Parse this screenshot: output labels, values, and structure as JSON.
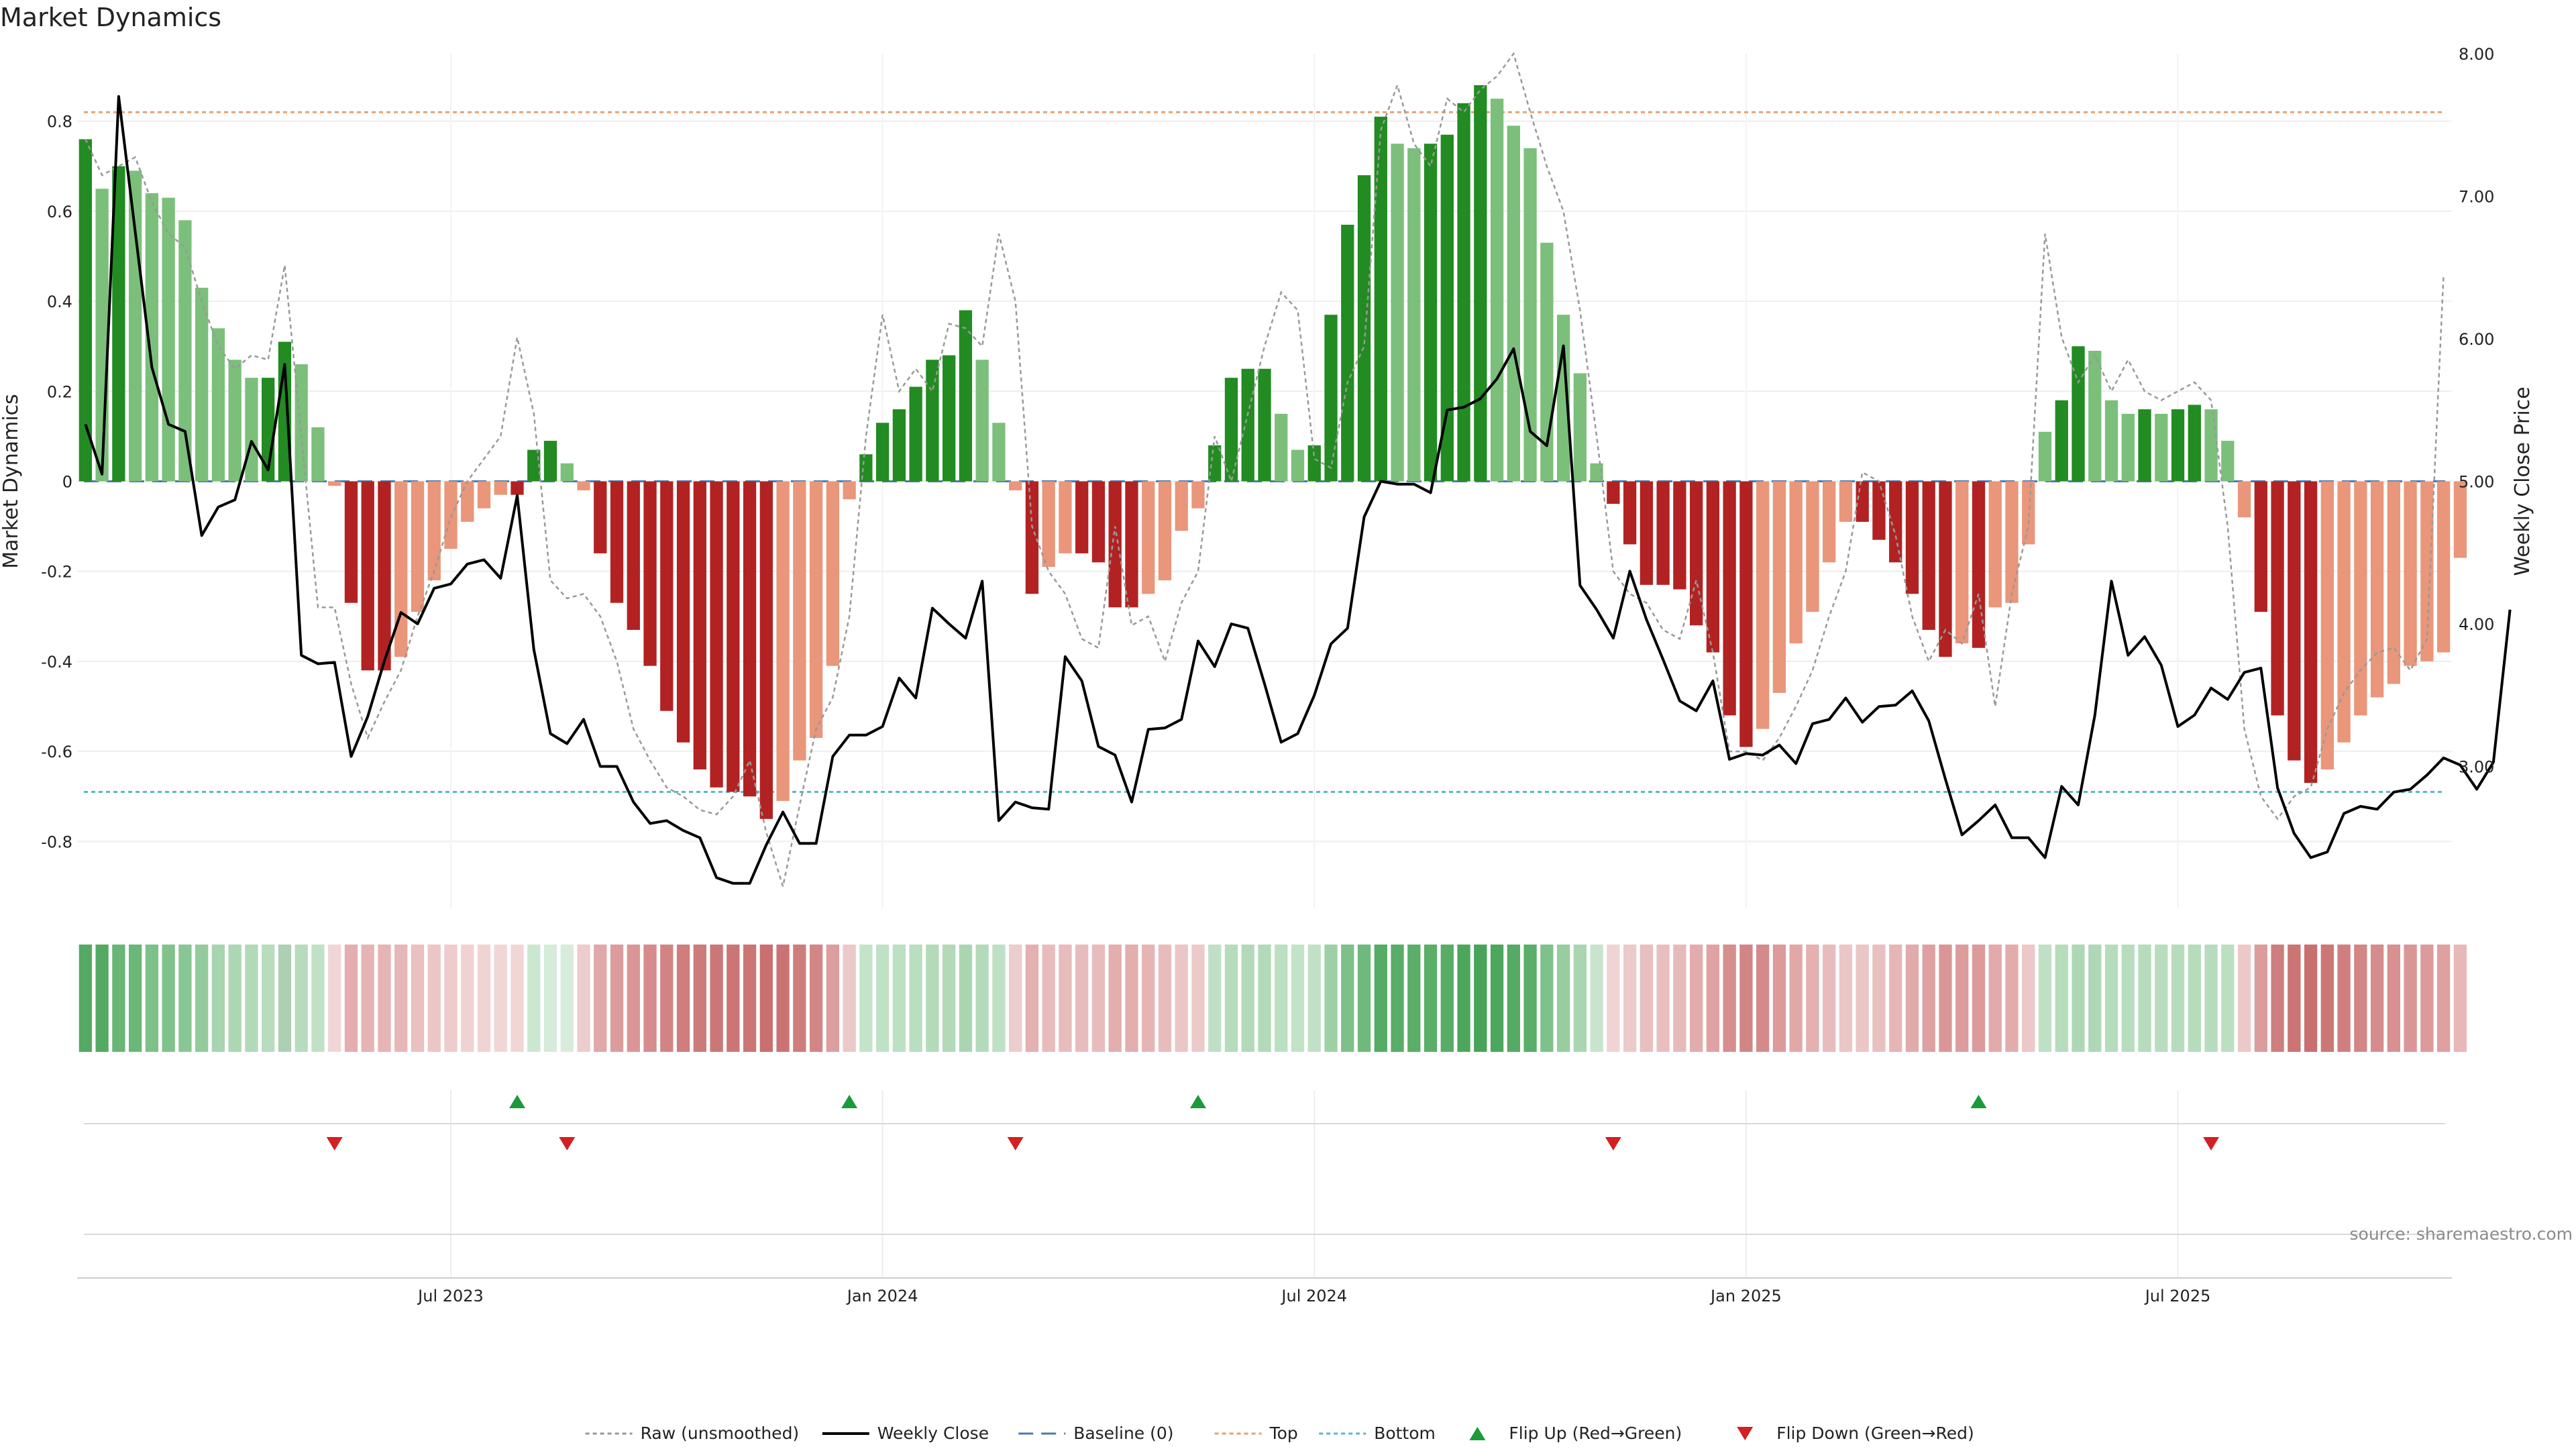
{
  "chart_data": {
    "type": "bar",
    "title": "Market Dynamics",
    "ylabel_left": "Market Dynamics",
    "ylabel_right": "Weekly Close Price",
    "ylim_left": [
      -0.95,
      0.95
    ],
    "ylim_right": [
      2.0,
      8.0
    ],
    "left_ticks": [
      {
        "v": 0.8,
        "label": "0.8"
      },
      {
        "v": 0.6,
        "label": "0.6"
      },
      {
        "v": 0.4,
        "label": "0.4"
      },
      {
        "v": 0.2,
        "label": "0.2"
      },
      {
        "v": 0,
        "label": "0"
      },
      {
        "v": -0.2,
        "label": "-0.2"
      },
      {
        "v": -0.4,
        "label": "-0.4"
      },
      {
        "v": -0.6,
        "label": "-0.6"
      },
      {
        "v": -0.8,
        "label": "-0.8"
      }
    ],
    "right_ticks": [
      {
        "v": 8,
        "label": "8.00"
      },
      {
        "v": 7,
        "label": "7.00"
      },
      {
        "v": 6,
        "label": "6.00"
      },
      {
        "v": 5,
        "label": "5.00"
      },
      {
        "v": 4,
        "label": "4.00"
      },
      {
        "v": 3,
        "label": "3.00"
      }
    ],
    "x_ticks": [
      {
        "week": 22,
        "label": "Jul 2023"
      },
      {
        "week": 48,
        "label": "Jan 2024"
      },
      {
        "week": 74,
        "label": "Jul 2024"
      },
      {
        "week": 100,
        "label": "Jan 2025"
      },
      {
        "week": 126,
        "label": "Jul 2025"
      }
    ],
    "num_weeks": 143,
    "top_level": 0.82,
    "bottom_level": -0.69,
    "baseline": 0,
    "bars": [
      0.76,
      0.65,
      0.7,
      0.69,
      0.64,
      0.63,
      0.58,
      0.43,
      0.34,
      0.27,
      0.23,
      0.23,
      0.31,
      0.26,
      0.12,
      -0.01,
      -0.27,
      -0.42,
      -0.42,
      -0.39,
      -0.29,
      -0.22,
      -0.15,
      -0.09,
      -0.06,
      -0.03,
      -0.03,
      0.07,
      0.09,
      0.04,
      -0.02,
      -0.16,
      -0.27,
      -0.33,
      -0.41,
      -0.51,
      -0.58,
      -0.64,
      -0.68,
      -0.69,
      -0.7,
      -0.75,
      -0.71,
      -0.62,
      -0.57,
      -0.41,
      -0.04,
      0.06,
      0.13,
      0.16,
      0.21,
      0.27,
      0.28,
      0.38,
      0.27,
      0.13,
      -0.02,
      -0.25,
      -0.19,
      -0.16,
      -0.16,
      -0.18,
      -0.28,
      -0.28,
      -0.25,
      -0.22,
      -0.11,
      -0.06,
      0.08,
      0.23,
      0.25,
      0.25,
      0.15,
      0.07,
      0.08,
      0.37,
      0.57,
      0.68,
      0.81,
      0.75,
      0.74,
      0.75,
      0.77,
      0.84,
      0.88,
      0.85,
      0.79,
      0.74,
      0.53,
      0.37,
      0.24,
      0.04,
      -0.05,
      -0.14,
      -0.23,
      -0.23,
      -0.24,
      -0.32,
      -0.38,
      -0.52,
      -0.59,
      -0.55,
      -0.47,
      -0.36,
      -0.29,
      -0.18,
      -0.09,
      -0.09,
      -0.13,
      -0.18,
      -0.25,
      -0.33,
      -0.39,
      -0.36,
      -0.37,
      -0.28,
      -0.27,
      -0.14,
      0.11,
      0.18,
      0.3,
      0.29,
      0.18,
      0.15,
      0.16,
      0.15,
      0.16,
      0.17,
      0.16,
      0.09,
      -0.08,
      -0.29,
      -0.52,
      -0.62,
      -0.67,
      -0.64,
      -0.58,
      -0.52,
      -0.48,
      -0.45,
      -0.41,
      -0.4,
      -0.38,
      -0.17
    ],
    "raw": [
      0.76,
      0.68,
      0.7,
      0.72,
      0.62,
      0.55,
      0.52,
      0.4,
      0.3,
      0.25,
      0.28,
      0.27,
      0.48,
      0.1,
      -0.28,
      -0.28,
      -0.45,
      -0.57,
      -0.49,
      -0.42,
      -0.3,
      -0.2,
      -0.08,
      0.0,
      0.05,
      0.1,
      0.32,
      0.15,
      -0.22,
      -0.26,
      -0.25,
      -0.3,
      -0.4,
      -0.55,
      -0.62,
      -0.68,
      -0.7,
      -0.73,
      -0.74,
      -0.7,
      -0.62,
      -0.78,
      -0.9,
      -0.72,
      -0.55,
      -0.48,
      -0.3,
      0.1,
      0.37,
      0.2,
      0.25,
      0.2,
      0.35,
      0.34,
      0.3,
      0.55,
      0.4,
      -0.1,
      -0.2,
      -0.25,
      -0.35,
      -0.37,
      -0.1,
      -0.32,
      -0.3,
      -0.4,
      -0.27,
      -0.2,
      0.1,
      0.0,
      0.15,
      0.3,
      0.42,
      0.38,
      0.05,
      0.03,
      0.22,
      0.3,
      0.78,
      0.88,
      0.75,
      0.7,
      0.85,
      0.82,
      0.87,
      0.9,
      0.95,
      0.82,
      0.7,
      0.6,
      0.38,
      0.1,
      -0.2,
      -0.25,
      -0.27,
      -0.33,
      -0.35,
      -0.22,
      -0.38,
      -0.6,
      -0.6,
      -0.62,
      -0.57,
      -0.5,
      -0.42,
      -0.3,
      -0.2,
      0.02,
      0.0,
      -0.12,
      -0.3,
      -0.4,
      -0.33,
      -0.36,
      -0.25,
      -0.5,
      -0.25,
      -0.1,
      0.55,
      0.32,
      0.22,
      0.28,
      0.2,
      0.27,
      0.2,
      0.18,
      0.2,
      0.22,
      0.18,
      -0.1,
      -0.55,
      -0.7,
      -0.75,
      -0.7,
      -0.68,
      -0.55,
      -0.47,
      -0.42,
      -0.38,
      -0.37,
      -0.42,
      -0.35,
      0.46
    ],
    "close": [
      5.4,
      5.05,
      7.7,
      6.75,
      5.8,
      5.4,
      5.35,
      4.62,
      4.82,
      4.87,
      5.28,
      5.08,
      5.82,
      3.78,
      3.72,
      3.73,
      3.07,
      3.35,
      3.74,
      4.08,
      4.0,
      4.25,
      4.28,
      4.42,
      4.45,
      4.32,
      4.9,
      3.82,
      3.23,
      3.16,
      3.33,
      3.0,
      3.0,
      2.75,
      2.6,
      2.62,
      2.55,
      2.5,
      2.22,
      2.18,
      2.18,
      2.45,
      2.68,
      2.46,
      2.46,
      3.07,
      3.22,
      3.22,
      3.28,
      3.62,
      3.48,
      4.11,
      4.0,
      3.9,
      4.3,
      2.62,
      2.75,
      2.71,
      2.7,
      3.77,
      3.6,
      3.14,
      3.08,
      2.75,
      3.26,
      3.27,
      3.33,
      3.88,
      3.7,
      4.0,
      3.97,
      3.58,
      3.17,
      3.23,
      3.5,
      3.86,
      3.97,
      4.75,
      5.0,
      4.98,
      4.98,
      4.92,
      5.5,
      5.52,
      5.58,
      5.72,
      5.93,
      5.35,
      5.25,
      5.95,
      4.27,
      4.1,
      3.9,
      4.37,
      4.03,
      3.75,
      3.46,
      3.39,
      3.6,
      3.05,
      3.09,
      3.08,
      3.15,
      3.02,
      3.3,
      3.33,
      3.48,
      3.31,
      3.42,
      3.43,
      3.53,
      3.32,
      2.91,
      2.52,
      2.62,
      2.73,
      2.5,
      2.5,
      2.36,
      2.86,
      2.73,
      3.36,
      4.3,
      3.78,
      3.91,
      3.71,
      3.28,
      3.36,
      3.55,
      3.47,
      3.66,
      3.69,
      2.85,
      2.53,
      2.36,
      2.4,
      2.67,
      2.72,
      2.7,
      2.82,
      2.84,
      2.94,
      3.06,
      3.01,
      2.84,
      3.03,
      4.1
    ],
    "strip_colors": [
      "#54aa63",
      "#54aa63",
      "#68b576",
      "#6ab777",
      "#7dc089",
      "#81c28c",
      "#88c693",
      "#93cb9d",
      "#a7d5af",
      "#abd7b2",
      "#b1dab8",
      "#b8dcbe",
      "#adcfb3",
      "#b7dcbd",
      "#c1e1c6",
      "#f0d6d6",
      "#e4aeae",
      "#e6b4b4",
      "#e6b4b4",
      "#e7b7b7",
      "#eac0c0",
      "#ecc6c6",
      "#eecccc",
      "#f0d2d2",
      "#f0d4d4",
      "#f1d6d6",
      "#f1d6d6",
      "#cce7d0",
      "#d6ebd9",
      "#d8ecdb",
      "#eccccc",
      "#e0a8a8",
      "#dc9c9c",
      "#da9696",
      "#d68c8c",
      "#d28484",
      "#cf7d7d",
      "#cd7a7a",
      "#cc7777",
      "#cb7575",
      "#cb7575",
      "#c96f6f",
      "#cb7373",
      "#ce7d7d",
      "#d28686",
      "#dc9e9e",
      "#ebc9c9",
      "#c4e3c9",
      "#bfe1c5",
      "#bce0c2",
      "#b9dec0",
      "#b3dbb9",
      "#b2dab8",
      "#a9d6b0",
      "#b3dbb9",
      "#c0e0c5",
      "#eccccc",
      "#e4b0b0",
      "#e8bcbc",
      "#e8bcbc",
      "#e8bcbc",
      "#e8bcbc",
      "#e3aeae",
      "#e3aeae",
      "#e6b4b4",
      "#e8bcbc",
      "#ebc6c6",
      "#eccaca",
      "#c0e0c5",
      "#b5dcbb",
      "#b2dab8",
      "#b2dab8",
      "#bbdfc1",
      "#c3e3c8",
      "#c1e1c6",
      "#9ed0a6",
      "#7dc089",
      "#6fb97c",
      "#56ab65",
      "#59ad67",
      "#5aae68",
      "#5aae68",
      "#57ac66",
      "#4ca75c",
      "#48a458",
      "#4ca75c",
      "#55ab64",
      "#5aae68",
      "#7fc18b",
      "#97cd9f",
      "#a9d6b0",
      "#c8e4cc",
      "#f0d4d4",
      "#eccaca",
      "#e8bebe",
      "#e8bebe",
      "#e7baba",
      "#e3acac",
      "#e0a2a2",
      "#d68e8e",
      "#d28585",
      "#d48a8a",
      "#dc9a9a",
      "#e2a8a8",
      "#e4b0b0",
      "#e8bcbc",
      "#ebc6c6",
      "#ebc6c6",
      "#e8c0c0",
      "#e6b6b6",
      "#e2abab",
      "#dea0a0",
      "#da9696",
      "#dc9c9c",
      "#dc9a9a",
      "#e2aaaa",
      "#e3acac",
      "#ecc8c8",
      "#c0e0c5",
      "#b5dcbb",
      "#aed8b5",
      "#aed8b5",
      "#b5dcbb",
      "#b8ddbe",
      "#b6dcbc",
      "#b8ddbe",
      "#b7dcbd",
      "#b6dcbc",
      "#b7dcbd",
      "#bcdfc2",
      "#ecc8c8",
      "#dc9c9c",
      "#ce7e7e",
      "#ca7474",
      "#c87070",
      "#cc7676",
      "#d07e7e",
      "#d28686",
      "#d68c8c",
      "#d89090",
      "#da9696",
      "#dc9a9a",
      "#dea0a0",
      "#e8b8b8"
    ],
    "flip_up_weeks": [
      26,
      46,
      67,
      114
    ],
    "flip_down_weeks": [
      15,
      29,
      56,
      92,
      128
    ],
    "colors": {
      "strong_green": "#228b22",
      "light_green": "#7bbf7b",
      "strong_red": "#b22222",
      "light_red": "#e9967a",
      "close_line": "#000000",
      "raw_line": "#999999",
      "baseline": "#4a7ab0",
      "top": "#e8a070",
      "bottom": "#5ab8c8",
      "flip_up": "#1a9a3a",
      "flip_down": "#d42020"
    },
    "legend": [
      {
        "label": "Raw (unsmoothed)",
        "kind": "raw"
      },
      {
        "label": "Weekly Close",
        "kind": "close"
      },
      {
        "label": "Baseline (0)",
        "kind": "baseline"
      },
      {
        "label": "Top",
        "kind": "top"
      },
      {
        "label": "Bottom",
        "kind": "bottom"
      },
      {
        "label": "Flip Up (Red→Green)",
        "kind": "up"
      },
      {
        "label": "Flip Down (Green→Red)",
        "kind": "down"
      }
    ],
    "source_text": "source: sharemaestro.com"
  }
}
